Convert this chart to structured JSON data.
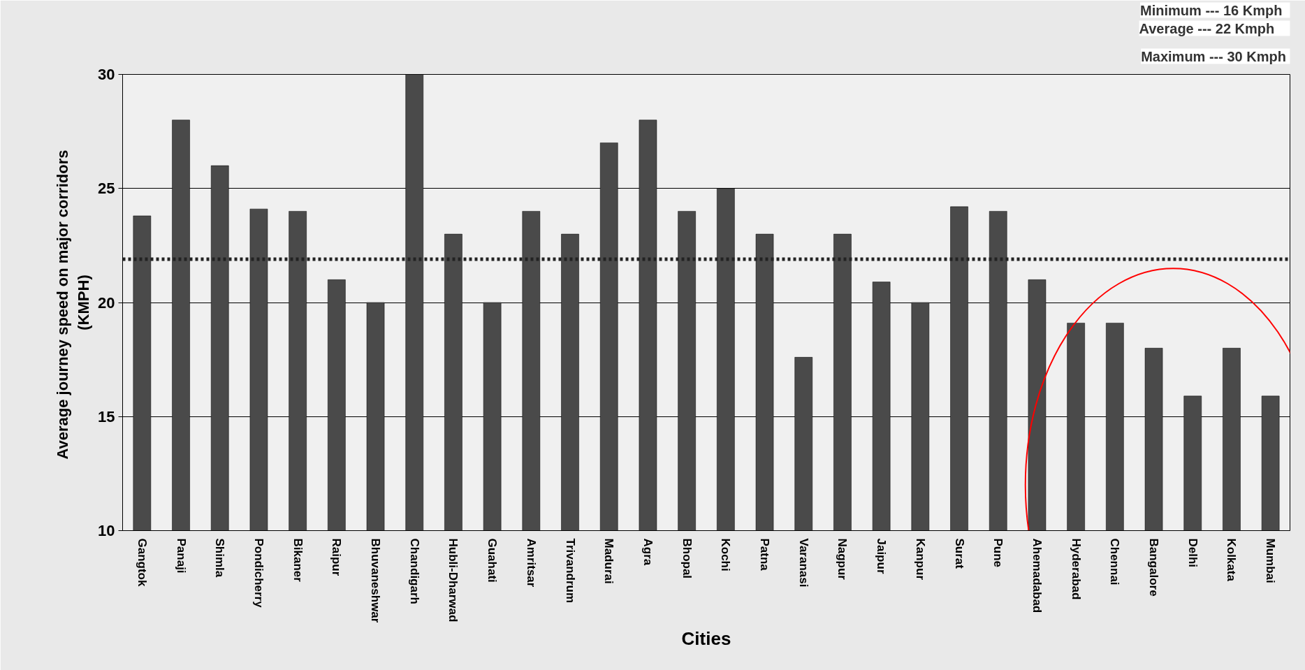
{
  "chart_data": {
    "type": "bar",
    "xlabel": "Cities",
    "ylabel": "Average journey speed  on major corridors\n(KMPH)",
    "categories": [
      "Gangtok",
      "Panaji",
      "Shimla",
      "Pondicherry",
      "Bikaner",
      "Raipur",
      "Bhuvaneshwar",
      "Chandigarh",
      "Hubli-Dharwad",
      "Guahati",
      "Amritsar",
      "Trivandrum",
      "Madurai",
      "Agra",
      "Bhopal",
      "Kochi",
      "Patna",
      "Varanasi",
      "Nagpur",
      "Jaipur",
      "Kanpur",
      "Surat",
      "Pune",
      "Ahemadabad",
      "Hyderabad",
      "Chennai",
      "Bangalore",
      "Delhi",
      "Kolkata",
      "Mumbai"
    ],
    "values": [
      23.8,
      28,
      26,
      24.1,
      24,
      21,
      20,
      30,
      23,
      20,
      24,
      23,
      27,
      28,
      24,
      25,
      23,
      17.6,
      23,
      20.9,
      20,
      24.2,
      24,
      21,
      19.1,
      19.1,
      18,
      15.9,
      18,
      15.9
    ],
    "color": "#4a4a4a",
    "ylim": [
      10,
      30
    ],
    "yticks": [
      10,
      15,
      20,
      25,
      30
    ],
    "grid": "y",
    "ref_lines": [
      {
        "axis": "y",
        "value": 21.9,
        "color": "#222222",
        "line_style": "dotted"
      }
    ],
    "annotations": [
      "Minimum  ---  16 Kmph",
      "Average   ---  22  Kmph",
      "Maximum ---  30 Kmph"
    ]
  }
}
